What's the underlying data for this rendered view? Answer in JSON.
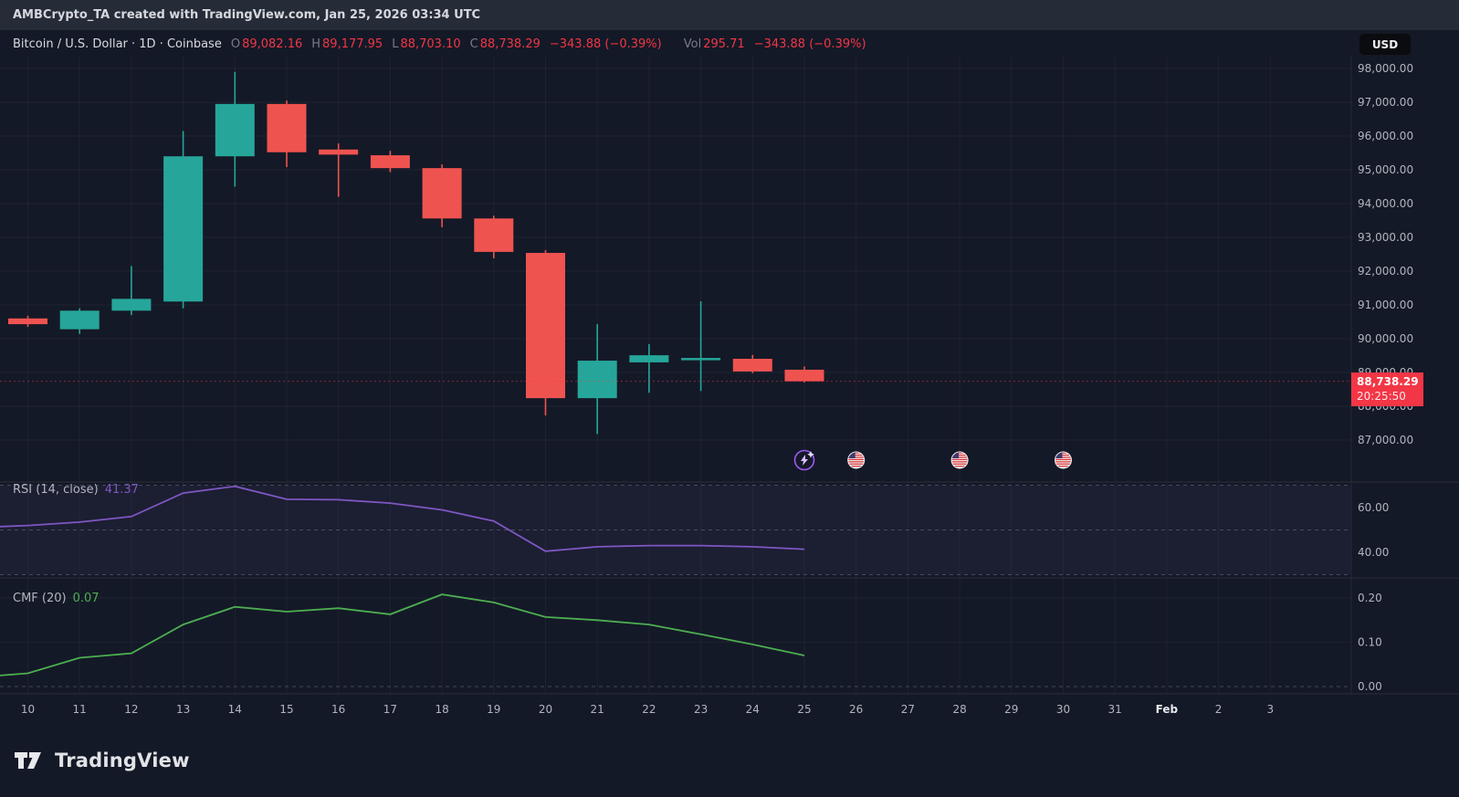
{
  "header": {
    "attribution": "AMBCrypto_TA created with TradingView.com, Jan 25, 2026 03:34 UTC"
  },
  "symbol_bar": {
    "title": "Bitcoin / U.S. Dollar · 1D · Coinbase",
    "ohlc": [
      {
        "label": "O",
        "value": "89,082.16"
      },
      {
        "label": "H",
        "value": "89,177.95"
      },
      {
        "label": "L",
        "value": "88,703.10"
      },
      {
        "label": "C",
        "value": "88,738.29"
      }
    ],
    "change": "−343.88 (−0.39%)",
    "vol_label": "Vol",
    "vol_value": "295.71",
    "vol_change": "−343.88 (−0.39%)",
    "currency_button": "USD"
  },
  "price_label": {
    "price": "88,738.29",
    "countdown": "20:25:50"
  },
  "rsi_label": {
    "name": "RSI (14, close)",
    "value": "41.37"
  },
  "cmf_label": {
    "name": "CMF (20)",
    "value": "0.07"
  },
  "footer": {
    "brand": "TradingView"
  },
  "colors": {
    "background": "#141927",
    "topbar": "#262b38",
    "up": "#26a69a",
    "down": "#ef5350",
    "accent_red": "#f23645",
    "rsi_purple": "#7e57c2",
    "cmf_green": "#4caf50",
    "axis_text": "#b2b5be"
  },
  "chart_data": [
    {
      "type": "candlestick",
      "title": "Bitcoin / U.S. Dollar · 1D · Coinbase",
      "x_labels": [
        "10",
        "11",
        "12",
        "13",
        "14",
        "15",
        "16",
        "17",
        "18",
        "19",
        "20",
        "21",
        "22",
        "23",
        "24",
        "25",
        "26",
        "27",
        "28",
        "29",
        "30",
        "31",
        "Feb",
        "2",
        "3"
      ],
      "y_ticks": [
        {
          "value": 98000,
          "label": "98,000.00"
        },
        {
          "value": 97000,
          "label": "97,000.00"
        },
        {
          "value": 96000,
          "label": "96,000.00"
        },
        {
          "value": 95000,
          "label": "95,000.00"
        },
        {
          "value": 94000,
          "label": "94,000.00"
        },
        {
          "value": 93000,
          "label": "93,000.00"
        },
        {
          "value": 92000,
          "label": "92,000.00"
        },
        {
          "value": 91000,
          "label": "91,000.00"
        },
        {
          "value": 90000,
          "label": "90,000.00"
        },
        {
          "value": 89000,
          "label": "89,000.00"
        },
        {
          "value": 88000,
          "label": "88,000.00"
        },
        {
          "value": 87000,
          "label": "87,000.00"
        }
      ],
      "y_range": [
        86800,
        98400
      ],
      "candles": [
        {
          "date": "Jan 10",
          "open": 90600,
          "high": 90680,
          "low": 90350,
          "close": 90430
        },
        {
          "date": "Jan 11",
          "open": 90280,
          "high": 90900,
          "low": 90140,
          "close": 90830
        },
        {
          "date": "Jan 12",
          "open": 90830,
          "high": 92150,
          "low": 90700,
          "close": 91180
        },
        {
          "date": "Jan 13",
          "open": 91100,
          "high": 96150,
          "low": 90900,
          "close": 95400
        },
        {
          "date": "Jan 14",
          "open": 95400,
          "high": 97900,
          "low": 94500,
          "close": 96950
        },
        {
          "date": "Jan 15",
          "open": 96950,
          "high": 97050,
          "low": 95080,
          "close": 95520
        },
        {
          "date": "Jan 16",
          "open": 95600,
          "high": 95780,
          "low": 94200,
          "close": 95450
        },
        {
          "date": "Jan 17",
          "open": 95430,
          "high": 95560,
          "low": 94930,
          "close": 95050
        },
        {
          "date": "Jan 18",
          "open": 95050,
          "high": 95160,
          "low": 93300,
          "close": 93560
        },
        {
          "date": "Jan 19",
          "open": 93560,
          "high": 93640,
          "low": 92380,
          "close": 92570
        },
        {
          "date": "Jan 20",
          "open": 92540,
          "high": 92620,
          "low": 87730,
          "close": 88240
        },
        {
          "date": "Jan 21",
          "open": 88240,
          "high": 90430,
          "low": 87180,
          "close": 89350
        },
        {
          "date": "Jan 22",
          "open": 89300,
          "high": 89840,
          "low": 88400,
          "close": 89510
        },
        {
          "date": "Jan 23",
          "open": 89380,
          "high": 91110,
          "low": 88450,
          "close": 89430
        },
        {
          "date": "Jan 24",
          "open": 89405,
          "high": 89520,
          "low": 88980,
          "close": 89030
        },
        {
          "date": "Jan 25",
          "open": 89082.16,
          "high": 89177.95,
          "low": 88703.1,
          "close": 88738.29
        }
      ],
      "last_price": 88738.29,
      "up_color": "#26a69a",
      "down_color": "#ef5350",
      "events": [
        {
          "day_index": 15,
          "type": "lightning"
        },
        {
          "day_index": 16,
          "type": "us-flag"
        },
        {
          "day_index": 18,
          "type": "us-flag"
        },
        {
          "day_index": 20,
          "type": "us-flag"
        }
      ]
    },
    {
      "type": "line",
      "name": "RSI (14, close)",
      "current": 41.37,
      "color": "#7e57c2",
      "legend_position": "top-left",
      "y_ticks": [
        {
          "value": 60,
          "label": "60.00"
        },
        {
          "value": 40,
          "label": "40.00"
        }
      ],
      "guides": [
        70,
        50,
        30
      ],
      "band": [
        30,
        70
      ],
      "lead_value": 51.5,
      "values": [
        52,
        53.5,
        56,
        66.5,
        69.5,
        63.7,
        63.5,
        62,
        59,
        54,
        40.5,
        42.5,
        43,
        43,
        42.5,
        41.37
      ]
    },
    {
      "type": "line",
      "name": "CMF (20)",
      "current": 0.07,
      "color": "#4caf50",
      "legend_position": "top-left",
      "y_ticks": [
        {
          "value": 0.2,
          "label": "0.20"
        },
        {
          "value": 0.1,
          "label": "0.10"
        },
        {
          "value": 0.0,
          "label": "0.00"
        }
      ],
      "guides": [
        0
      ],
      "lead_value": 0.025,
      "values": [
        0.03,
        0.065,
        0.075,
        0.14,
        0.18,
        0.169,
        0.177,
        0.163,
        0.208,
        0.19,
        0.157,
        0.15,
        0.14,
        0.118,
        0.095,
        0.07
      ]
    }
  ]
}
